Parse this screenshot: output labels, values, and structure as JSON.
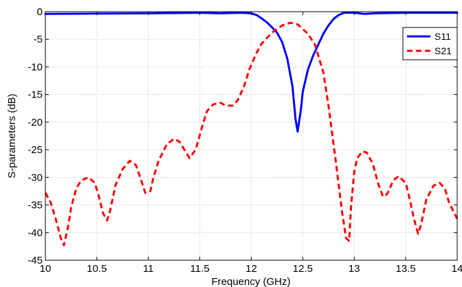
{
  "chart_data": {
    "type": "line",
    "xlabel": "Frequency (GHz)",
    "ylabel": "S-parameters (dB)",
    "xlim": [
      10,
      14
    ],
    "ylim": [
      -45,
      0
    ],
    "xticks": [
      10,
      10.5,
      11,
      11.5,
      12,
      12.5,
      13,
      13.5,
      14
    ],
    "xtick_labels": [
      "10",
      "10.5",
      "11",
      "11.5",
      "12",
      "12.5",
      "13",
      "13.5",
      "14"
    ],
    "yticks": [
      0,
      -5,
      -10,
      -15,
      -20,
      -25,
      -30,
      -35,
      -40,
      -45
    ],
    "ytick_labels": [
      "0",
      "-5",
      "-10",
      "-15",
      "-20",
      "-25",
      "-30",
      "-35",
      "-40",
      "-45"
    ],
    "grid": true,
    "legend_position": "top-right",
    "series": [
      {
        "name": "S11",
        "color": "#0000ff",
        "style": "solid",
        "x": [
          10,
          10.5,
          11,
          11.5,
          11.7,
          11.9,
          12.0,
          12.05,
          12.1,
          12.15,
          12.2,
          12.25,
          12.3,
          12.35,
          12.4,
          12.43,
          12.45,
          12.48,
          12.5,
          12.55,
          12.6,
          12.65,
          12.7,
          12.75,
          12.8,
          12.85,
          12.9,
          13.0,
          13.1,
          13.2,
          13.5,
          14
        ],
        "y": [
          -0.4,
          -0.35,
          -0.3,
          -0.2,
          -0.3,
          -0.2,
          -0.3,
          -0.6,
          -1.2,
          -1.9,
          -2.8,
          -3.8,
          -5.5,
          -8.5,
          -13.5,
          -19.5,
          -21.7,
          -18.0,
          -14.5,
          -10.5,
          -8.0,
          -6.0,
          -4.0,
          -2.5,
          -1.3,
          -0.6,
          -0.2,
          -0.2,
          -0.4,
          -0.3,
          -0.2,
          -0.2
        ]
      },
      {
        "name": "S21",
        "color": "#ff0000",
        "style": "dashed",
        "x": [
          10,
          10.05,
          10.1,
          10.15,
          10.18,
          10.22,
          10.25,
          10.3,
          10.35,
          10.42,
          10.48,
          10.52,
          10.56,
          10.6,
          10.63,
          10.68,
          10.75,
          10.82,
          10.88,
          10.93,
          10.97,
          11.02,
          11.05,
          11.1,
          11.18,
          11.25,
          11.3,
          11.35,
          11.4,
          11.46,
          11.52,
          11.57,
          11.63,
          11.7,
          11.75,
          11.82,
          11.87,
          11.93,
          11.98,
          12.05,
          12.1,
          12.2,
          12.3,
          12.38,
          12.45,
          12.55,
          12.62,
          12.7,
          12.75,
          12.82,
          12.88,
          12.92,
          12.95,
          12.97,
          13.0,
          13.03,
          13.08,
          13.12,
          13.18,
          13.23,
          13.28,
          13.32,
          13.38,
          13.43,
          13.5,
          13.54,
          13.58,
          13.62,
          13.65,
          13.7,
          13.77,
          13.83,
          13.88,
          13.92,
          13.96,
          14.0
        ],
        "y": [
          -32.8,
          -34.5,
          -37.5,
          -41.0,
          -42.3,
          -39.0,
          -35.5,
          -32.0,
          -30.5,
          -30.0,
          -31.0,
          -33.5,
          -36.5,
          -37.8,
          -36.0,
          -31.5,
          -28.5,
          -27.0,
          -27.8,
          -30.5,
          -32.8,
          -32.5,
          -30.0,
          -27.0,
          -24.0,
          -23.0,
          -23.5,
          -25.0,
          -26.5,
          -25.0,
          -21.0,
          -18.0,
          -16.8,
          -16.5,
          -17.0,
          -17.0,
          -16.0,
          -13.5,
          -10.5,
          -7.5,
          -5.8,
          -3.8,
          -2.5,
          -2.0,
          -2.3,
          -4.0,
          -6.0,
          -11.0,
          -17.0,
          -27.0,
          -36.0,
          -41.0,
          -41.5,
          -35.0,
          -29.0,
          -26.5,
          -25.3,
          -25.5,
          -27.5,
          -31.0,
          -33.5,
          -33.0,
          -30.5,
          -29.8,
          -31.0,
          -34.0,
          -37.5,
          -40.2,
          -38.5,
          -34.0,
          -31.5,
          -31.0,
          -32.0,
          -34.5,
          -36.0,
          -37.5
        ]
      }
    ]
  }
}
